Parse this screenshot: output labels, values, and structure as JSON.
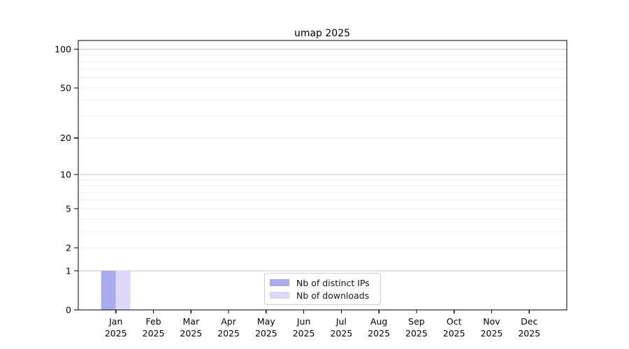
{
  "page": {
    "background": "#ffffff"
  },
  "chart_data": {
    "type": "bar",
    "title": "umap 2025",
    "categories": [
      "Jan 2025",
      "Feb 2025",
      "Mar 2025",
      "Apr 2025",
      "May 2025",
      "Jun 2025",
      "Jul 2025",
      "Aug 2025",
      "Sep 2025",
      "Oct 2025",
      "Nov 2025",
      "Dec 2025"
    ],
    "series": [
      {
        "name": "Nb of distinct IPs",
        "color": "#aaaaef",
        "values": [
          1,
          0,
          0,
          0,
          0,
          0,
          0,
          0,
          0,
          0,
          0,
          0
        ]
      },
      {
        "name": "Nb of downloads",
        "color": "#dadaf8",
        "values": [
          1,
          0,
          0,
          0,
          0,
          0,
          0,
          0,
          0,
          0,
          0,
          0
        ]
      }
    ],
    "xlabel": "",
    "ylabel": "",
    "y_axis": {
      "scale": "log1p",
      "tick_values": [
        0,
        1,
        2,
        5,
        10,
        20,
        50,
        100
      ],
      "tick_labels": [
        "0",
        "1",
        "2",
        "5",
        "10",
        "20",
        "50",
        "100"
      ],
      "major_grid_values": [
        1,
        10,
        100
      ],
      "minor_grid_values": [
        2,
        3,
        4,
        5,
        6,
        7,
        8,
        9,
        20,
        30,
        40,
        50,
        60,
        70,
        80,
        90
      ],
      "ylim": [
        0,
        117
      ]
    },
    "grid": true,
    "legend": {
      "position": "bottom-center",
      "entries": [
        "Nb of distinct IPs",
        "Nb of downloads"
      ]
    },
    "colors": {
      "bar_distinct_ips": "#aaaaef",
      "bar_downloads": "#dadaf8",
      "grid_major": "#c3c3c3",
      "grid_minor": "#ededed",
      "axis_frame": "#000000",
      "tick_text": "#000000",
      "legend_border": "#cccccc"
    }
  }
}
